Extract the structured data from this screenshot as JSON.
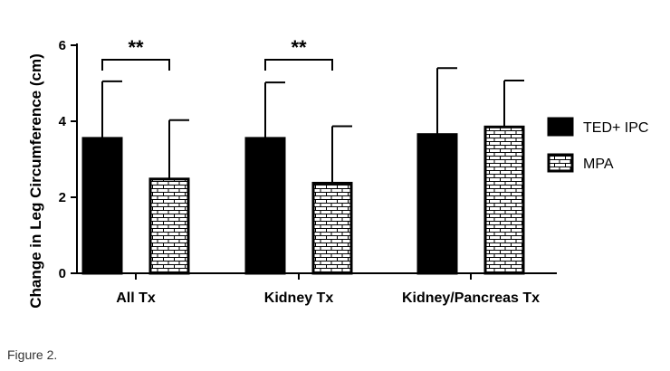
{
  "chart_data": {
    "type": "bar",
    "title": "",
    "xlabel": "",
    "ylabel": "Change in Leg Circumference (cm)",
    "ylim": [
      0,
      6
    ],
    "yticks": [
      0,
      2,
      4,
      6
    ],
    "grid": false,
    "legend_position": "right",
    "categories": [
      "All Tx",
      "Kidney Tx",
      "Kidney/Pancreas Tx"
    ],
    "series": [
      {
        "name": "TED+ IPC",
        "values": [
          3.55,
          3.55,
          3.65
        ],
        "errors": [
          1.5,
          1.47,
          1.75
        ],
        "color": "#000000",
        "pattern": "solid"
      },
      {
        "name": "MPA",
        "values": [
          2.48,
          2.37,
          3.85
        ],
        "errors": [
          1.55,
          1.5,
          1.22
        ],
        "color": "#ffffff",
        "pattern": "brick"
      }
    ],
    "significance": [
      {
        "category": "All Tx",
        "label": "**"
      },
      {
        "category": "Kidney Tx",
        "label": "**"
      }
    ]
  },
  "caption": "Figure 2."
}
